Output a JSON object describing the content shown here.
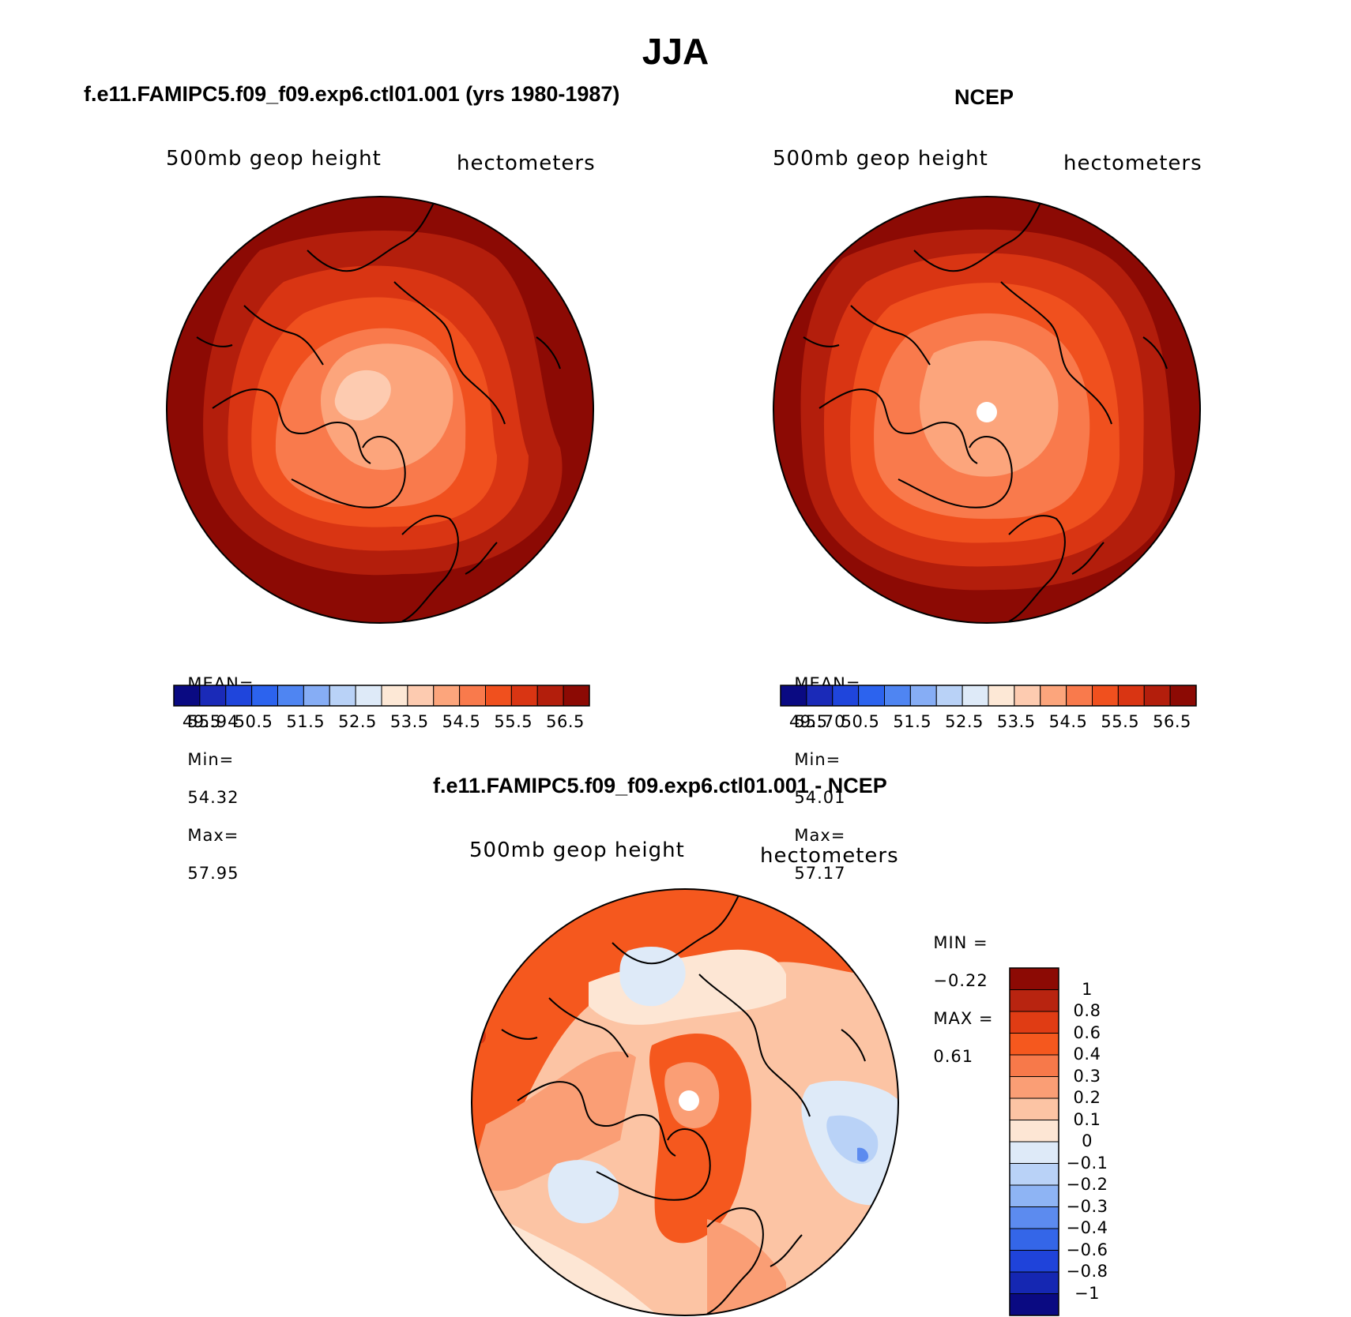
{
  "figure": {
    "title": "JJA"
  },
  "panels": {
    "model": {
      "title": "f.e11.FAMIPC5.f09_f09.exp6.ctl01.001 (yrs 1980-1987)",
      "field_label": "500mb geop height",
      "units_label": "hectometers",
      "stats": {
        "mean_label": "MEAN=",
        "mean_value": "55.94",
        "min_label": "Min=",
        "min_value": "54.32",
        "max_label": "Max=",
        "max_value": "57.95"
      }
    },
    "obs": {
      "title": "NCEP",
      "field_label": "500mb geop height",
      "units_label": "hectometers",
      "stats": {
        "mean_label": "MEAN=",
        "mean_value": "55.70",
        "min_label": "Min=",
        "min_value": "54.01",
        "max_label": "Max=",
        "max_value": "57.17"
      }
    },
    "diff": {
      "title": "f.e11.FAMIPC5.f09_f09.exp6.ctl01.001 - NCEP",
      "field_label": "500mb geop height",
      "units_label": "hectometers",
      "stats": {
        "min_label": "MIN =",
        "min_value": "−0.22",
        "max_label": "MAX =",
        "max_value": "0.61"
      }
    }
  },
  "colorbars": {
    "absolute": {
      "colors": [
        "#0a0a82",
        "#1a2ab8",
        "#1f45dc",
        "#2c63ee",
        "#4f85f2",
        "#86adf5",
        "#b9d2f7",
        "#deeaf8",
        "#fde8d6",
        "#fdcbb0",
        "#fca57c",
        "#f97a4c",
        "#f0501e",
        "#d93513",
        "#b31e0c",
        "#8c0a04"
      ],
      "labels": [
        "49.5",
        "50.5",
        "51.5",
        "52.5",
        "53.5",
        "54.5",
        "55.5",
        "56.5"
      ]
    },
    "difference": {
      "colors_top_to_bottom": [
        "#8c0a04",
        "#b82410",
        "#e03c14",
        "#f5581e",
        "#f7794a",
        "#fa9e75",
        "#fcc4a4",
        "#fde6d4",
        "#deeaf8",
        "#b9d2f7",
        "#8eb4f4",
        "#5c8bef",
        "#3466e8",
        "#1f43da",
        "#1527b2",
        "#0a0a82"
      ],
      "labels": [
        "1",
        "0.8",
        "0.6",
        "0.4",
        "0.3",
        "0.2",
        "0.1",
        "0",
        "−0.1",
        "−0.2",
        "−0.3",
        "−0.4",
        "−0.6",
        "−0.8",
        "−1"
      ]
    }
  }
}
